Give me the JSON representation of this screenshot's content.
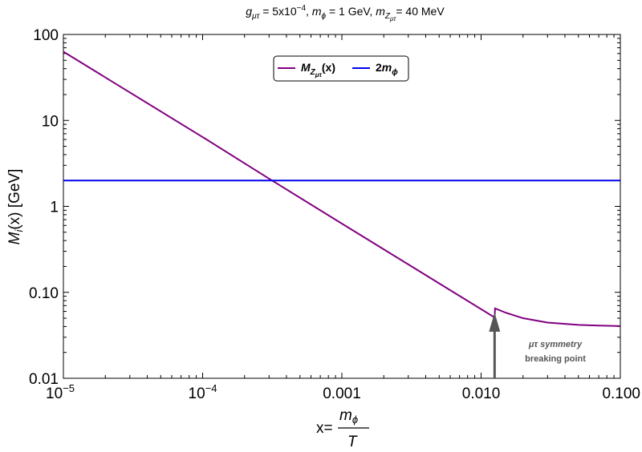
{
  "chart_data": {
    "type": "line",
    "title": {
      "g": "g",
      "g_sub": "μτ",
      "g_eq": " = 5x10",
      "g_exp": "−4",
      "sep1": ", ",
      "mphi": "m",
      "mphi_sub": "ϕ",
      "mphi_eq": " = 1 GeV",
      "sep2": ", ",
      "mz": "m",
      "mz_sub": "Z",
      "mz_subsub": "μτ",
      "mz_eq": "= 40 MeV"
    },
    "xlabel": {
      "prefix": "x=",
      "num": "m",
      "num_sub": "ϕ",
      "den": "T"
    },
    "ylabel": {
      "M": "M",
      "sub": "i",
      "rest": "(x) [GeV]"
    },
    "x_scale": "log",
    "y_scale": "log",
    "xlim": [
      1e-05,
      0.1
    ],
    "ylim": [
      0.01,
      100
    ],
    "x_ticks": [
      {
        "value": 1e-05,
        "base": "10",
        "exp": "−5"
      },
      {
        "value": 0.0001,
        "base": "10",
        "exp": "−4"
      },
      {
        "value": 0.001,
        "label": "0.001"
      },
      {
        "value": 0.01,
        "label": "0.010"
      },
      {
        "value": 0.1,
        "label": "0.100"
      }
    ],
    "y_ticks": [
      {
        "value": 0.01,
        "label": "0.01"
      },
      {
        "value": 0.1,
        "label": "0.10"
      },
      {
        "value": 1,
        "label": "1"
      },
      {
        "value": 10,
        "label": "10"
      },
      {
        "value": 100,
        "label": "100"
      }
    ],
    "series": [
      {
        "legend": {
          "M": "M",
          "Z": "Z",
          "sub": "μτ",
          "rest": "(x)"
        },
        "color": "#800080",
        "x": [
          1e-05,
          0.0001,
          0.0003,
          0.001,
          0.005,
          0.0125,
          0.0126,
          0.015,
          0.02,
          0.03,
          0.05,
          0.07,
          0.1
        ],
        "y": [
          63,
          6.4,
          2.1,
          0.63,
          0.127,
          0.051,
          0.065,
          0.058,
          0.05,
          0.0445,
          0.0418,
          0.041,
          0.0405
        ]
      },
      {
        "legend": {
          "two": "2",
          "m": "m",
          "sub": "ϕ"
        },
        "color": "#0000ee",
        "x": [
          1e-05,
          0.1
        ],
        "y": [
          2,
          2
        ]
      }
    ],
    "legend_position": "top-center",
    "annotation": {
      "line1": "μτ symmetry",
      "line2": "breaking point",
      "arrow_x": 0.0125,
      "arrow_y": 0.065
    },
    "grid": false
  }
}
